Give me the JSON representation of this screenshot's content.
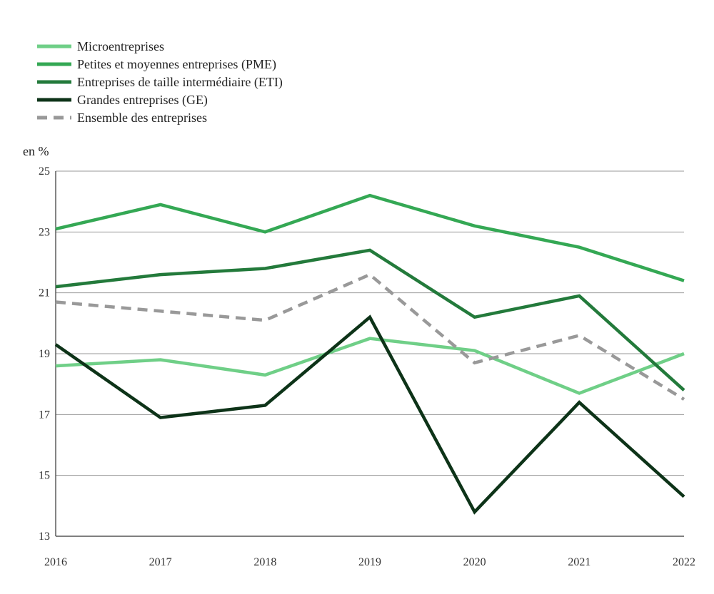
{
  "chart_data": {
    "type": "line",
    "title": "",
    "xlabel": "",
    "ylabel": "en %",
    "ylim": [
      13,
      25
    ],
    "yticks": [
      13,
      15,
      17,
      19,
      21,
      23,
      25
    ],
    "grid": "horizontal",
    "legend_position": "top-left",
    "categories": [
      "2016",
      "2017",
      "2018",
      "2019",
      "2020",
      "2021",
      "2022"
    ],
    "series": [
      {
        "name": "Microentreprises",
        "color": "#6fcf87",
        "dashed": false,
        "values": [
          18.6,
          18.8,
          18.3,
          19.5,
          19.1,
          17.7,
          19.0
        ]
      },
      {
        "name": "Petites et moyennes entreprises (PME)",
        "color": "#34a854",
        "dashed": false,
        "values": [
          23.1,
          23.9,
          23.0,
          24.2,
          23.2,
          22.5,
          21.4
        ]
      },
      {
        "name": "Entreprises de taille intermédiaire (ETI)",
        "color": "#237a3b",
        "dashed": false,
        "values": [
          21.2,
          21.6,
          21.8,
          22.4,
          20.2,
          20.9,
          17.8
        ]
      },
      {
        "name": "Grandes entreprises (GE)",
        "color": "#0d3318",
        "dashed": false,
        "values": [
          19.3,
          16.9,
          17.3,
          20.2,
          13.8,
          17.4,
          14.3
        ]
      },
      {
        "name": "Ensemble des entreprises",
        "color": "#999999",
        "dashed": true,
        "values": [
          20.7,
          20.4,
          20.1,
          21.6,
          18.7,
          19.6,
          17.5
        ]
      }
    ]
  }
}
